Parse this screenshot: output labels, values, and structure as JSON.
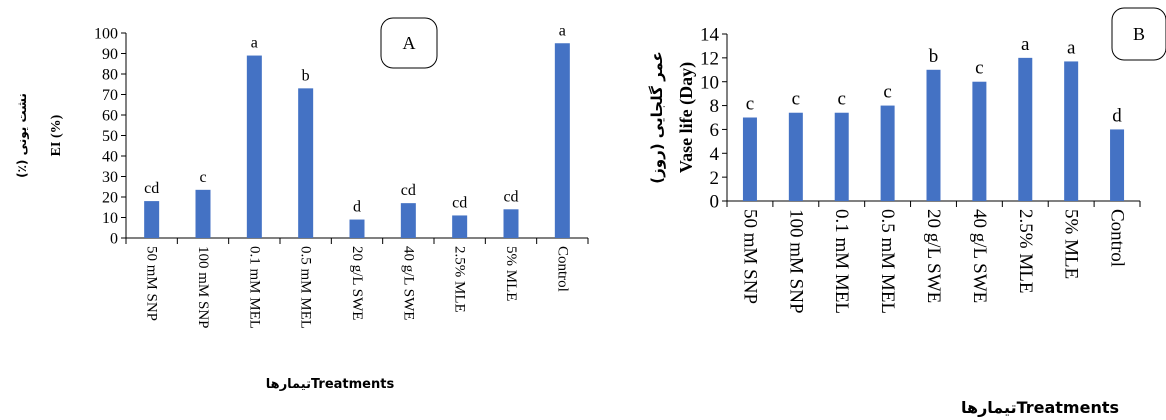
{
  "chart_data": [
    {
      "type": "bar",
      "panel_label": "A",
      "categories": [
        "50 mM SNP",
        "100 mM SNP",
        "0.1 mM MEL",
        "0.5 mM MEL",
        "20 g/L SWE",
        "40 g/L SWE",
        "2.5% MLE",
        "5% MLE",
        "Control"
      ],
      "values": [
        18,
        23.5,
        89,
        73,
        9,
        17,
        11,
        14,
        95
      ],
      "letters": [
        "cd",
        "c",
        "a",
        "b",
        "d",
        "cd",
        "cd",
        "cd",
        "a"
      ],
      "ylabel": "EI (%)",
      "ylabel_fa": "نشت یونی (٪)",
      "xlabel": "تیمارهاTreatments",
      "ylim": [
        0,
        100
      ],
      "yticks": [
        0,
        10,
        20,
        30,
        40,
        50,
        60,
        70,
        80,
        90,
        100
      ],
      "bar_color": "#4472C4"
    },
    {
      "type": "bar",
      "panel_label": "B",
      "categories": [
        "50 mM SNP",
        "100 mM SNP",
        "0.1 mM MEL",
        "0.5 mM MEL",
        "20 g/L SWE",
        "40 g/L SWE",
        "2.5% MLE",
        "5% MLE",
        "Control"
      ],
      "values": [
        7,
        7.4,
        7.4,
        8,
        11,
        10,
        12,
        11.7,
        6
      ],
      "letters": [
        "c",
        "c",
        "c",
        "c",
        "b",
        "c",
        "a",
        "a",
        "d"
      ],
      "ylabel": "Vase life (Day)",
      "ylabel_fa": "عمر گلجایی (روز)",
      "xlabel": "تیمارهاTreatments",
      "ylim": [
        0,
        14
      ],
      "yticks": [
        0,
        2,
        4,
        6,
        8,
        10,
        12,
        14
      ],
      "bar_color": "#4472C4"
    }
  ]
}
